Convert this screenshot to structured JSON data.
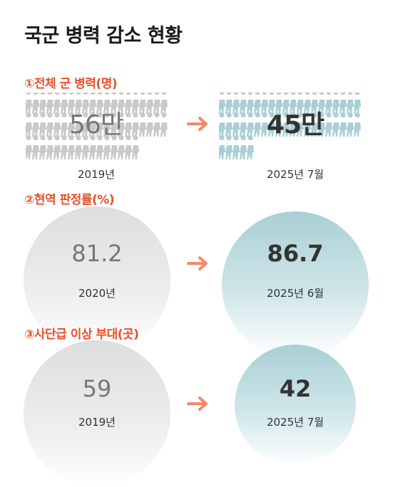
{
  "title": "국군 병력 감소 현황",
  "colors": {
    "accent": "#e8502c",
    "arrow": "#f2896a",
    "gray_soldier": "#c9c9c9",
    "blue_soldier": "#a9cfd5",
    "gray_circle": "#dedede",
    "blue_circle": "#a9cfd5",
    "value_old": "#777777",
    "value_new": "#333333"
  },
  "icons": {
    "soldier": "soldier-silhouette-icon",
    "arrow": "arrow-right-icon"
  },
  "chart_data": [
    {
      "type": "bar",
      "title": "①전체 군 병력(명)",
      "categories": [
        "2019년",
        "2025년 7월"
      ],
      "values": [
        560000,
        450000
      ],
      "value_labels": [
        "56만",
        "45만"
      ]
    },
    {
      "type": "bar",
      "title": "②현역 판정률(%)",
      "categories": [
        "2020년",
        "2025년 6월"
      ],
      "values": [
        81.2,
        86.7
      ],
      "value_labels": [
        "81.2",
        "86.7"
      ]
    },
    {
      "type": "bar",
      "title": "③사단급 이상 부대(곳)",
      "categories": [
        "2019년",
        "2025년 7월"
      ],
      "values": [
        59,
        42
      ],
      "value_labels": [
        "59",
        "42"
      ]
    }
  ]
}
